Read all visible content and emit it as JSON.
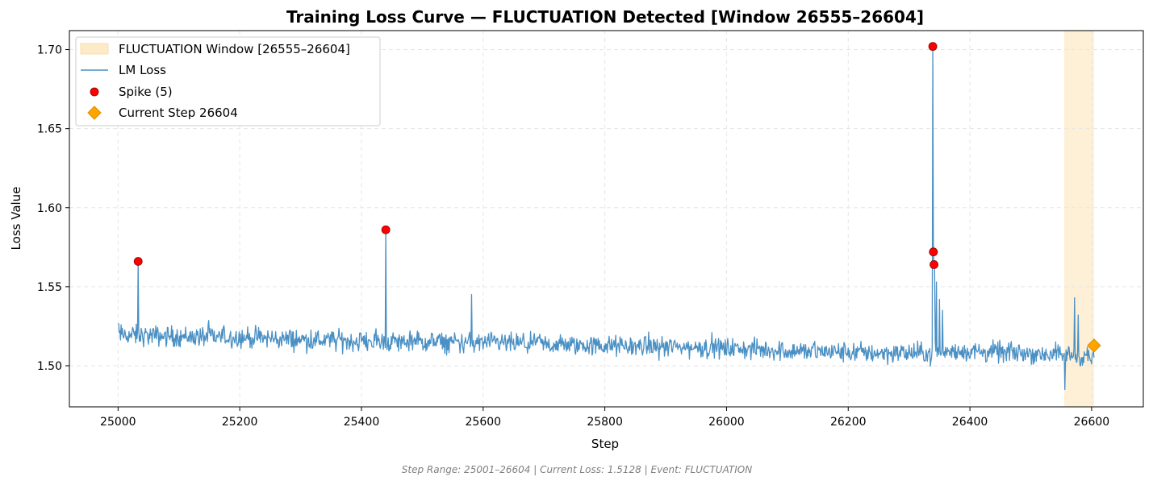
{
  "chart_data": {
    "type": "line",
    "title": "Training Loss Curve — FLUCTUATION Detected [Window 26555–26604]",
    "xlabel": "Step",
    "ylabel": "Loss Value",
    "xlim": [
      24920,
      26685
    ],
    "ylim": [
      1.474,
      1.712
    ],
    "x_ticks": [
      25000,
      25200,
      25400,
      25600,
      25800,
      26000,
      26200,
      26400,
      26600
    ],
    "y_ticks": [
      1.5,
      1.55,
      1.6,
      1.65,
      1.7
    ],
    "x_tick_labels": [
      "25000",
      "25200",
      "25400",
      "25600",
      "25800",
      "26000",
      "26200",
      "26400",
      "26600"
    ],
    "y_tick_labels": [
      "1.50",
      "1.55",
      "1.60",
      "1.65",
      "1.70"
    ],
    "grid": true,
    "legend_position": "top-left",
    "legend": [
      {
        "label": "FLUCTUATION Window [26555–26604]",
        "kind": "band"
      },
      {
        "label": "LM Loss",
        "kind": "line"
      },
      {
        "label": "Spike (5)",
        "kind": "spike"
      },
      {
        "label": "Current Step 26604",
        "kind": "current"
      }
    ],
    "fluctuation_window": [
      26555,
      26604
    ],
    "series": [
      {
        "name": "LM Loss",
        "range": [
          25001,
          26604
        ],
        "anchors": [
          [
            25001,
            1.5195
          ],
          [
            25100,
            1.5185
          ],
          [
            25200,
            1.518
          ],
          [
            25300,
            1.5165
          ],
          [
            25400,
            1.5155
          ],
          [
            25500,
            1.515
          ],
          [
            25600,
            1.5145
          ],
          [
            25700,
            1.5135
          ],
          [
            25800,
            1.5125
          ],
          [
            25900,
            1.512
          ],
          [
            26000,
            1.511
          ],
          [
            26100,
            1.5095
          ],
          [
            26200,
            1.5085
          ],
          [
            26300,
            1.508
          ],
          [
            26336,
            1.508
          ],
          [
            26400,
            1.509
          ],
          [
            26500,
            1.508
          ],
          [
            26550,
            1.507
          ],
          [
            26604,
            1.5055
          ]
        ],
        "noise_amplitude": 0.006,
        "features": [
          [
            25033,
            1.566
          ],
          [
            25440,
            1.586
          ],
          [
            25581,
            1.545
          ],
          [
            26339,
            1.702
          ],
          [
            26340,
            1.572
          ],
          [
            26341,
            1.564
          ],
          [
            26342,
            1.56
          ],
          [
            26345,
            1.553
          ],
          [
            26350,
            1.542
          ],
          [
            26355,
            1.535
          ],
          [
            26556,
            1.485
          ],
          [
            26572,
            1.543
          ],
          [
            26578,
            1.532
          ]
        ]
      }
    ],
    "spikes": [
      {
        "x": 25033,
        "y": 1.566
      },
      {
        "x": 25440,
        "y": 1.586
      },
      {
        "x": 26339,
        "y": 1.702
      },
      {
        "x": 26340,
        "y": 1.572
      },
      {
        "x": 26341,
        "y": 1.564
      }
    ],
    "current_step": {
      "x": 26604,
      "y": 1.5128
    }
  },
  "footer": "Step Range: 25001–26604 | Current Loss: 1.5128 | Event: FLUCTUATION",
  "colors": {
    "line": "#4a90c4",
    "spike": "#ff0000",
    "current": "#ffa500",
    "band": "#fdebc8",
    "grid": "#e6e6e6"
  }
}
